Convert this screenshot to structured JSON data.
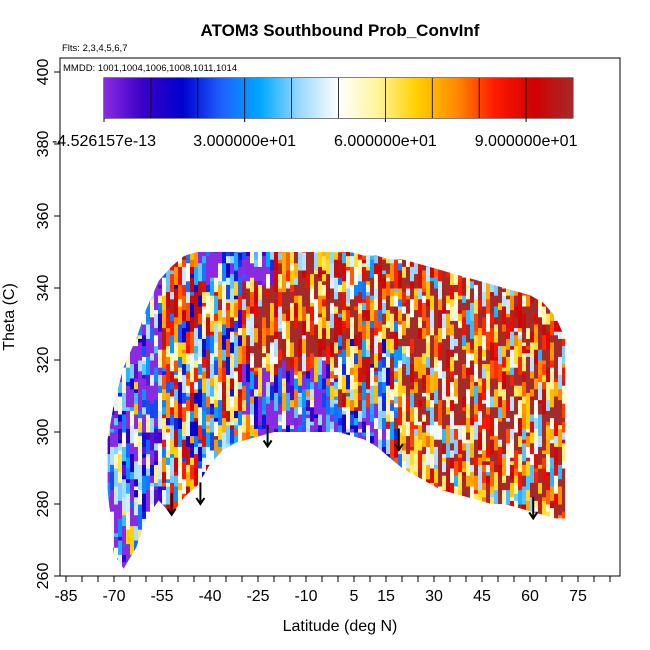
{
  "chart_data": {
    "type": "heatmap",
    "title": "ATOM3 Southbound Prob_ConvInf",
    "flights_note": "Flts: 2,3,4,5,6,7",
    "dates_note": "MMDD: 1001,1004,1006,1008,1011,1014",
    "xlabel": "Latitude (deg N)",
    "ylabel": "Theta (C)",
    "xlim": [
      -85,
      85
    ],
    "ylim": [
      260,
      400
    ],
    "x_ticks": [
      -85,
      -70,
      -55,
      -40,
      -25,
      -10,
      5,
      15,
      30,
      45,
      60,
      75
    ],
    "y_ticks": [
      260,
      280,
      300,
      320,
      340,
      360,
      380,
      400
    ],
    "colorbar": {
      "labels": [
        "-4.526157e-13",
        "3.000000e+01",
        "6.000000e+01",
        "9.000000e+01"
      ],
      "label_values": [
        0,
        30,
        60,
        90
      ],
      "range": [
        0,
        100
      ],
      "colors": [
        "#8a2be2",
        "#3a00c8",
        "#0000cd",
        "#1e60ff",
        "#00a8ff",
        "#9ad8ff",
        "#ffffff",
        "#fff59a",
        "#ffd000",
        "#ff8c00",
        "#ff1a00",
        "#d10000",
        "#a52a2a"
      ]
    },
    "field_envelope": {
      "lat": [
        -72,
        -70,
        -67,
        -63,
        -60,
        -56,
        -52,
        -48,
        -44,
        -40,
        -36,
        -32,
        -28,
        -24,
        -20,
        -16,
        -12,
        -8,
        -4,
        0,
        4,
        8,
        12,
        16,
        20,
        24,
        28,
        32,
        36,
        40,
        44,
        48,
        52,
        56,
        60,
        64,
        68,
        71
      ],
      "theta_bottom": [
        284,
        266,
        262,
        268,
        276,
        281,
        277,
        282,
        285,
        291,
        295,
        297,
        298,
        299,
        300,
        300,
        300,
        300,
        300,
        300,
        299,
        298,
        296,
        293,
        290,
        288,
        286,
        284,
        283,
        282,
        281,
        280,
        280,
        279,
        278,
        277,
        276,
        276
      ],
      "theta_top": [
        298,
        308,
        318,
        326,
        334,
        342,
        346,
        349,
        350,
        350,
        350,
        350,
        350,
        350,
        350,
        350,
        350,
        350,
        350,
        350,
        350,
        349,
        349,
        348,
        348,
        347,
        346,
        345,
        344,
        343,
        342,
        341,
        340,
        339,
        338,
        336,
        332,
        326
      ]
    },
    "arrows": [
      {
        "lat": -52,
        "theta": 283
      },
      {
        "lat": -43,
        "theta": 286
      },
      {
        "lat": -22,
        "theta": 302
      },
      {
        "lat": 19,
        "theta": 301
      },
      {
        "lat": 61,
        "theta": 282
      }
    ]
  }
}
